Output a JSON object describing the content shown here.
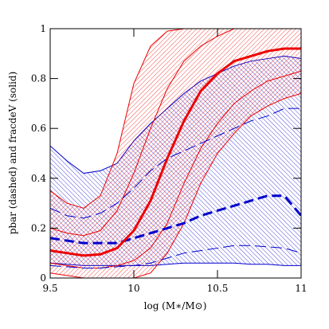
{
  "chart_data": {
    "type": "line",
    "xlabel": "log (M∗/M⊙)",
    "ylabel": "pbar (dashed)   and   fracdeV (solid)",
    "x": [
      9.5,
      9.6,
      9.7,
      9.8,
      9.9,
      10.0,
      10.1,
      10.2,
      10.3,
      10.4,
      10.5,
      10.6,
      10.7,
      10.8,
      10.9,
      11.0
    ],
    "xlim": [
      9.5,
      11
    ],
    "xticks": [
      9.5,
      10,
      10.5,
      11
    ],
    "ylim": [
      0,
      1
    ],
    "yticks": [
      0,
      0.2,
      0.4,
      0.6,
      0.8,
      1
    ],
    "bands": [
      {
        "color": "#0000cc",
        "hatch": "back",
        "lower": [
          0.06,
          0.055,
          0.05,
          0.05,
          0.05,
          0.05,
          0.05,
          0.055,
          0.06,
          0.06,
          0.06,
          0.06,
          0.055,
          0.055,
          0.05,
          0.05
        ],
        "upper": [
          0.53,
          0.47,
          0.42,
          0.43,
          0.46,
          0.55,
          0.62,
          0.68,
          0.74,
          0.79,
          0.82,
          0.85,
          0.87,
          0.88,
          0.89,
          0.88
        ]
      },
      {
        "color": "#ee0000",
        "hatch": "forward",
        "lower": [
          0.02,
          0.01,
          0,
          0,
          0,
          0,
          0.02,
          0.1,
          0.22,
          0.38,
          0.5,
          0.58,
          0.65,
          0.69,
          0.72,
          0.74
        ],
        "upper": [
          0.35,
          0.3,
          0.28,
          0.33,
          0.5,
          0.78,
          0.93,
          0.99,
          1,
          1,
          1,
          1,
          1,
          1,
          1,
          1
        ]
      }
    ],
    "series": [
      {
        "color": "#ee0000",
        "style": "solid",
        "width": 1,
        "values": [
          0.2,
          0.18,
          0.17,
          0.19,
          0.27,
          0.42,
          0.6,
          0.76,
          0.87,
          0.93,
          0.97,
          1,
          1,
          1,
          1,
          1
        ]
      },
      {
        "color": "#ee0000",
        "style": "solid",
        "width": 1,
        "values": [
          0.06,
          0.05,
          0.04,
          0.04,
          0.05,
          0.07,
          0.12,
          0.22,
          0.38,
          0.52,
          0.62,
          0.7,
          0.75,
          0.79,
          0.81,
          0.83
        ]
      },
      {
        "color": "#0000cc",
        "style": "dashed",
        "width": 1,
        "values": [
          0.28,
          0.25,
          0.24,
          0.26,
          0.3,
          0.36,
          0.43,
          0.48,
          0.51,
          0.54,
          0.57,
          0.6,
          0.63,
          0.65,
          0.68,
          0.68
        ]
      },
      {
        "color": "#0000cc",
        "style": "dashed",
        "width": 1,
        "values": [
          0.05,
          0.045,
          0.04,
          0.04,
          0.045,
          0.05,
          0.06,
          0.08,
          0.1,
          0.11,
          0.12,
          0.13,
          0.13,
          0.125,
          0.12,
          0.1
        ]
      },
      {
        "color": "#0000cc",
        "style": "dashed",
        "width": 3,
        "values": [
          0.16,
          0.15,
          0.14,
          0.14,
          0.14,
          0.16,
          0.18,
          0.2,
          0.22,
          0.25,
          0.27,
          0.29,
          0.31,
          0.33,
          0.33,
          0.25
        ]
      },
      {
        "color": "#ee0000",
        "style": "solid",
        "width": 3,
        "values": [
          0.11,
          0.1,
          0.09,
          0.095,
          0.12,
          0.19,
          0.31,
          0.48,
          0.63,
          0.75,
          0.82,
          0.87,
          0.89,
          0.91,
          0.92,
          0.92
        ]
      }
    ]
  }
}
